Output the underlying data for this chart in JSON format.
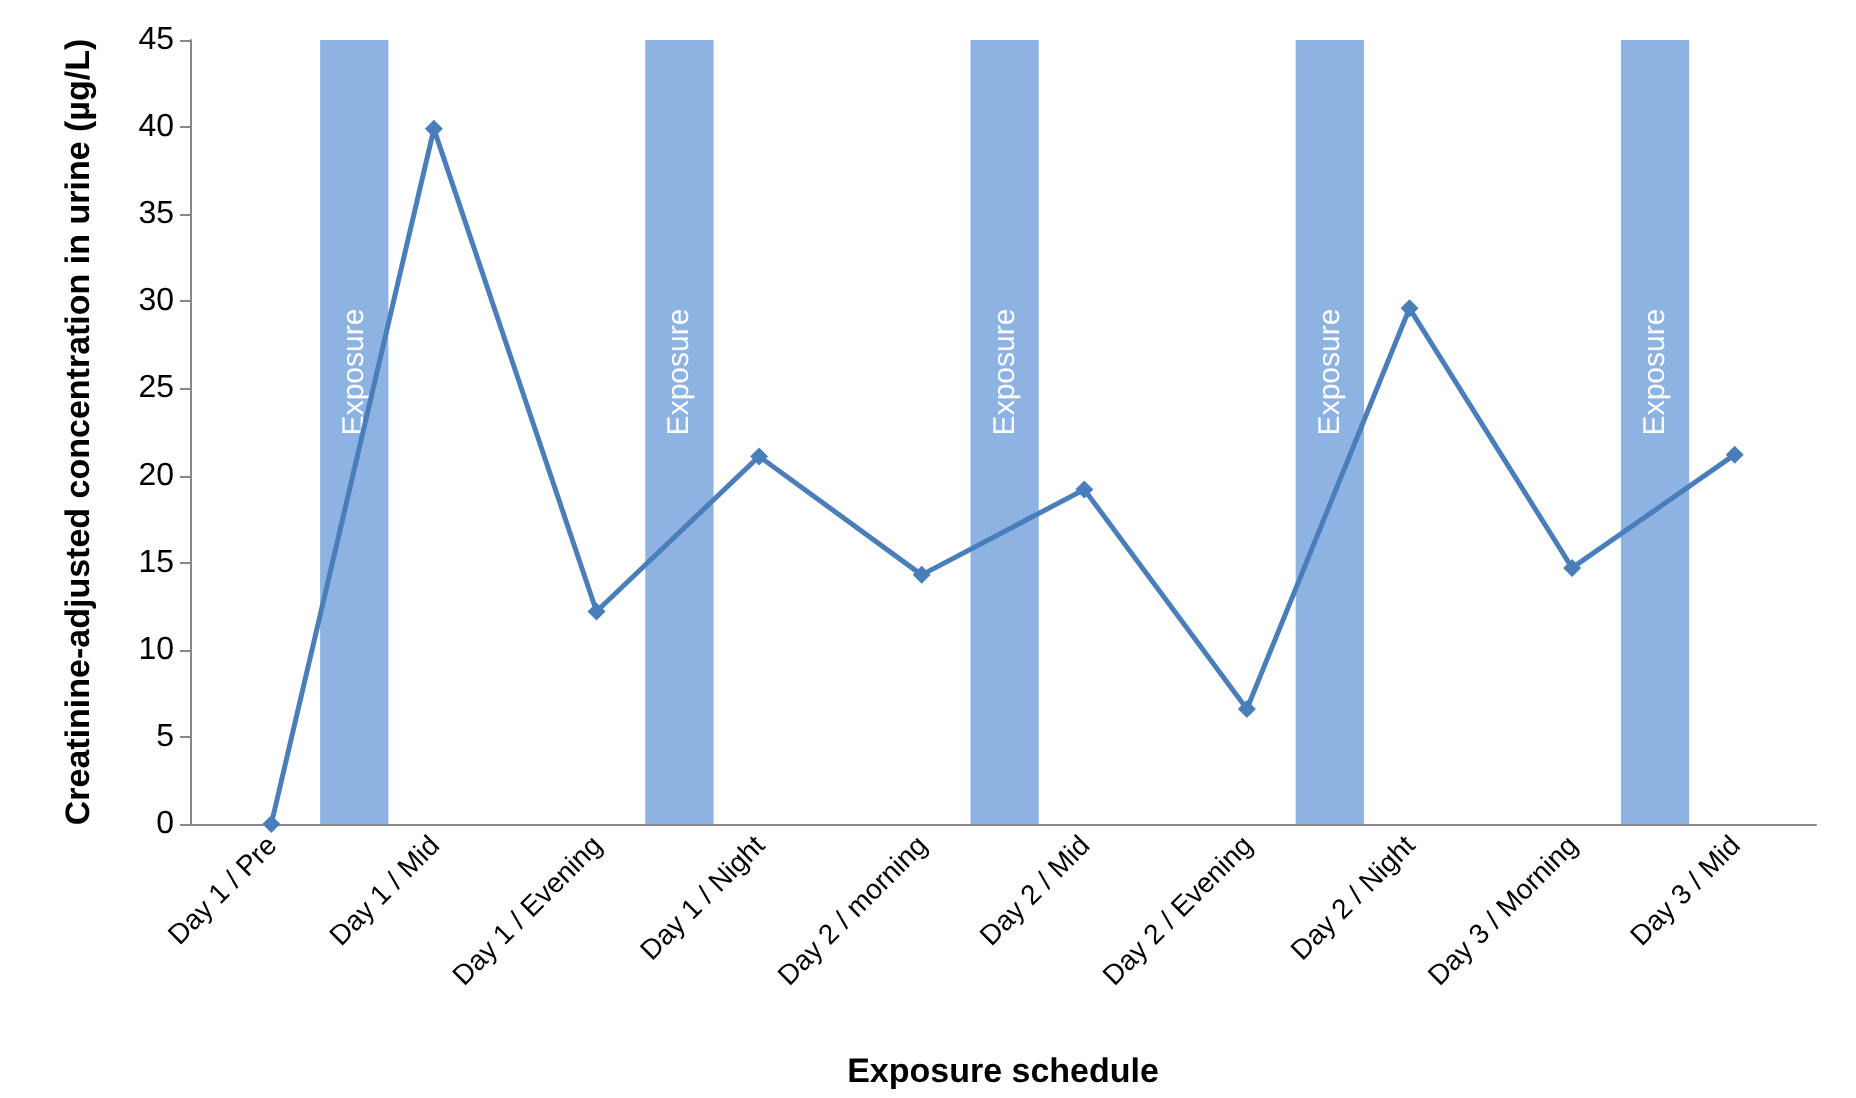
{
  "chart_data": {
    "type": "line",
    "xlabel": "Exposure schedule",
    "ylabel": "Creatinine-adjusted concentration in urine (µg/L)",
    "categories": [
      "Day 1 / Pre",
      "Day 1 / Mid",
      "Day 1 / Evening",
      "Day 1 / Night",
      "Day 2 / morning",
      "Day 2 / Mid",
      "Day 2 / Evening",
      "Day 2 / Night",
      "Day 3 / Morning",
      "Day 3 / Mid"
    ],
    "series": [
      {
        "color": "#4a7ebb",
        "values": [
          0,
          39.9,
          12.2,
          21.1,
          14.3,
          19.2,
          6.6,
          29.6,
          14.7,
          21.2
        ]
      }
    ],
    "ylim": [
      0,
      45
    ],
    "yticks": [
      0,
      5,
      10,
      15,
      20,
      25,
      30,
      35,
      40,
      45
    ],
    "grid": false,
    "marker": "diamond",
    "line_style": "solid",
    "bands": [
      {
        "axis": "x",
        "from": "Day 1 / Pre",
        "to": "Day 1 / Mid",
        "label": "Exposure",
        "color": "#8db3e2"
      },
      {
        "axis": "x",
        "from": "Day 1 / Evening",
        "to": "Day 1 / Night",
        "label": "Exposure",
        "color": "#8db3e2"
      },
      {
        "axis": "x",
        "from": "Day 2 / morning",
        "to": "Day 2 / Mid",
        "label": "Exposure",
        "color": "#8db3e2"
      },
      {
        "axis": "x",
        "from": "Day 2 / Evening",
        "to": "Day 2 / Night",
        "label": "Exposure",
        "color": "#8db3e2"
      },
      {
        "axis": "x",
        "from": "Day 3 / Morning",
        "to": "Day 3 / Mid",
        "label": "Exposure",
        "color": "#8db3e2"
      }
    ]
  }
}
